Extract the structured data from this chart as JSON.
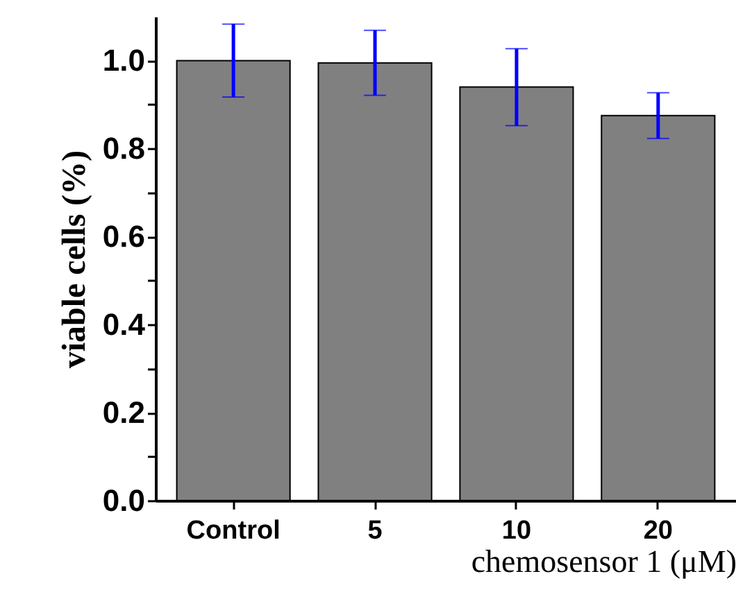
{
  "chart_data": {
    "type": "bar",
    "xlabel": "chemosensor 1 (μM)",
    "ylabel": "viable cells (%)",
    "categories": [
      "Control",
      "5",
      "10",
      "20"
    ],
    "values": [
      1.0,
      0.995,
      0.94,
      0.875
    ],
    "errors": [
      0.083,
      0.074,
      [
        0.852,
        1.027
      ],
      0.052
    ],
    "color": "#808080",
    "ylim": [
      0,
      1.1
    ],
    "yticks": [
      {
        "value": 0,
        "label": "0.0"
      },
      {
        "value": 0.1,
        "label": null
      },
      0.2,
      {
        "value": 0.3,
        "label": null
      },
      0.4,
      {
        "value": 0.5,
        "label": null
      },
      0.6,
      {
        "value": 0.7,
        "label": null
      },
      0.8,
      {
        "value": 0.9,
        "label": null
      },
      {
        "value": 1,
        "label": "1.0"
      }
    ],
    "grid": false
  }
}
